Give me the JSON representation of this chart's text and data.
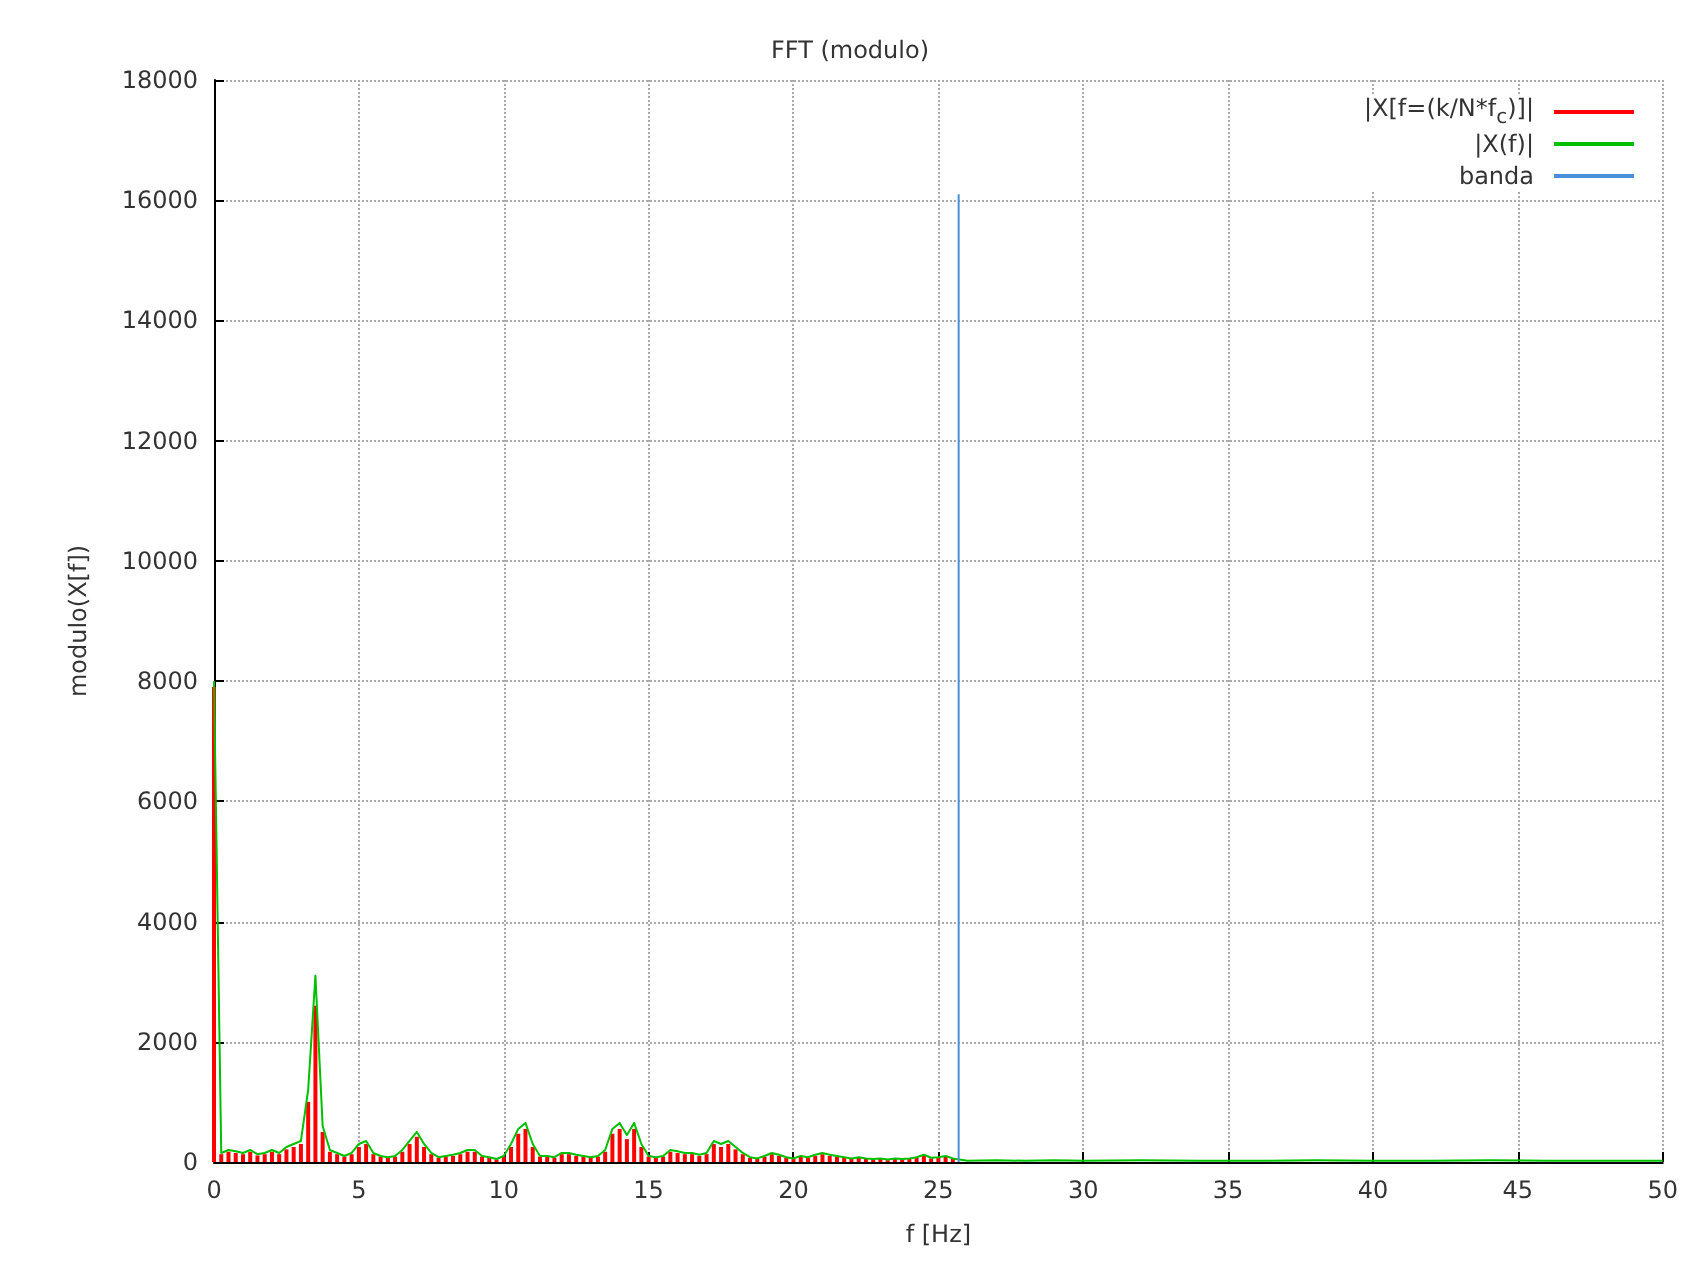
{
  "chart_data": {
    "type": "line",
    "title": "FFT (modulo)",
    "xlabel": "f [Hz]",
    "ylabel": "modulo(X[f])",
    "xlim": [
      0,
      50
    ],
    "xticks": [
      0,
      5,
      10,
      15,
      20,
      25,
      30,
      35,
      40,
      45,
      50
    ],
    "ylim": [
      0,
      18000
    ],
    "yticks": [
      0,
      2000,
      4000,
      6000,
      8000,
      10000,
      12000,
      14000,
      16000,
      18000
    ],
    "grid": true,
    "legend": "top right",
    "marker": "none",
    "line_style": "solid",
    "series": [
      {
        "name": "|X[f=(k/N*f$_{c}$)]|",
        "type": "bar",
        "color": "#ff0000",
        "x": [
          0,
          0.25,
          0.5,
          0.75,
          1,
          1.25,
          1.5,
          1.75,
          2,
          2.25,
          2.5,
          2.75,
          3,
          3.25,
          3.5,
          3.75,
          4,
          4.25,
          4.5,
          4.75,
          5,
          5.25,
          5.5,
          5.75,
          6,
          6.25,
          6.5,
          6.75,
          7,
          7.25,
          7.5,
          7.75,
          8,
          8.25,
          8.5,
          8.75,
          9,
          9.25,
          9.5,
          9.75,
          10,
          10.25,
          10.5,
          10.75,
          11,
          11.25,
          11.5,
          11.75,
          12,
          12.25,
          12.5,
          12.75,
          13,
          13.25,
          13.5,
          13.75,
          14,
          14.25,
          14.5,
          14.75,
          15,
          15.25,
          15.5,
          15.75,
          16,
          16.25,
          16.5,
          16.75,
          17,
          17.25,
          17.5,
          17.75,
          18,
          18.25,
          18.5,
          18.75,
          19,
          19.25,
          19.5,
          19.75,
          20,
          20.25,
          20.5,
          20.75,
          21,
          21.25,
          21.5,
          21.75,
          22,
          22.25,
          22.5,
          22.75,
          23,
          23.25,
          23.5,
          23.75,
          24,
          24.25,
          24.5,
          24.75,
          25,
          25.25,
          25.5
        ],
        "values": [
          7900,
          130,
          170,
          150,
          130,
          170,
          110,
          130,
          170,
          130,
          210,
          250,
          300,
          1000,
          2600,
          500,
          170,
          130,
          90,
          130,
          250,
          300,
          130,
          90,
          70,
          90,
          170,
          300,
          420,
          250,
          130,
          70,
          90,
          100,
          130,
          170,
          170,
          90,
          70,
          40,
          90,
          250,
          470,
          550,
          250,
          90,
          90,
          70,
          130,
          130,
          100,
          90,
          70,
          90,
          170,
          470,
          550,
          380,
          550,
          250,
          90,
          70,
          90,
          170,
          150,
          130,
          130,
          100,
          130,
          300,
          250,
          300,
          210,
          130,
          70,
          50,
          90,
          130,
          100,
          70,
          50,
          90,
          70,
          100,
          130,
          100,
          90,
          70,
          50,
          70,
          50,
          40,
          50,
          30,
          50,
          40,
          50,
          70,
          100,
          60,
          70,
          90,
          50
        ]
      },
      {
        "name": "|X(f)|",
        "color": "#00c000",
        "x": [
          0,
          0.25,
          0.5,
          0.75,
          1,
          1.25,
          1.5,
          1.75,
          2,
          2.25,
          2.5,
          2.75,
          3,
          3.25,
          3.5,
          3.75,
          4,
          4.25,
          4.5,
          4.75,
          5,
          5.25,
          5.5,
          5.75,
          6,
          6.25,
          6.5,
          6.75,
          7,
          7.25,
          7.5,
          7.75,
          8,
          8.25,
          8.5,
          8.75,
          9,
          9.25,
          9.5,
          9.75,
          10,
          10.25,
          10.5,
          10.75,
          11,
          11.25,
          11.5,
          11.75,
          12,
          12.25,
          12.5,
          12.75,
          13,
          13.25,
          13.5,
          13.75,
          14,
          14.25,
          14.5,
          14.75,
          15,
          15.25,
          15.5,
          15.75,
          16,
          16.25,
          16.5,
          16.75,
          17,
          17.25,
          17.5,
          17.75,
          18,
          18.25,
          18.5,
          18.75,
          19,
          19.25,
          19.5,
          19.75,
          20,
          20.25,
          20.5,
          20.75,
          21,
          21.25,
          21.5,
          21.75,
          22,
          22.25,
          22.5,
          22.75,
          23,
          23.25,
          23.5,
          23.75,
          24,
          24.25,
          24.5,
          24.75,
          25,
          25.25,
          25.5,
          26,
          27,
          28,
          29,
          30,
          32,
          34,
          36,
          38,
          40,
          42,
          44,
          46,
          48,
          50
        ],
        "values": [
          8000,
          150,
          200,
          180,
          150,
          200,
          130,
          150,
          200,
          150,
          250,
          300,
          350,
          1200,
          3100,
          600,
          200,
          150,
          100,
          150,
          300,
          350,
          150,
          100,
          80,
          100,
          200,
          350,
          500,
          300,
          150,
          80,
          100,
          120,
          150,
          200,
          200,
          100,
          80,
          50,
          100,
          300,
          550,
          650,
          300,
          100,
          100,
          80,
          150,
          150,
          120,
          100,
          80,
          100,
          200,
          550,
          650,
          450,
          650,
          300,
          100,
          80,
          100,
          200,
          180,
          150,
          150,
          120,
          150,
          350,
          300,
          350,
          250,
          150,
          80,
          60,
          100,
          150,
          120,
          80,
          60,
          100,
          80,
          120,
          150,
          120,
          100,
          80,
          60,
          80,
          60,
          50,
          60,
          40,
          60,
          50,
          60,
          80,
          120,
          70,
          80,
          100,
          60,
          20,
          30,
          20,
          30,
          20,
          30,
          20,
          20,
          30,
          20,
          20,
          30,
          20,
          20,
          20
        ]
      },
      {
        "name": "banda",
        "color": "#4a90d9",
        "x": [
          25.7,
          25.7
        ],
        "values": [
          0,
          16100
        ]
      }
    ]
  }
}
